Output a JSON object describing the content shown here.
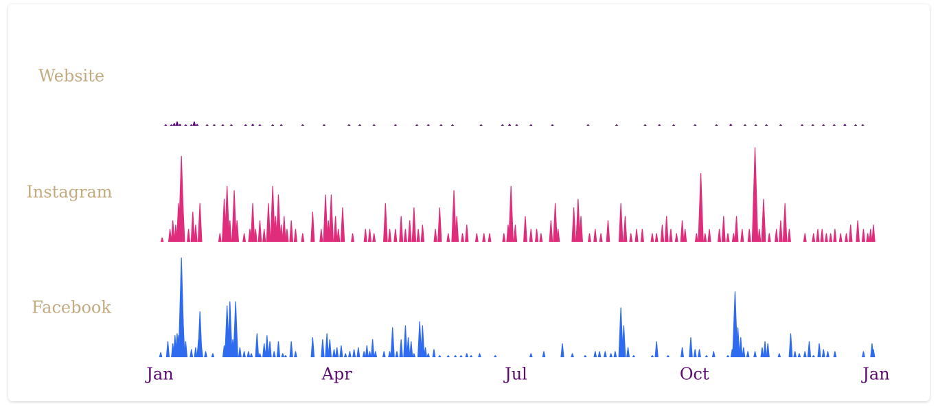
{
  "chart_data": {
    "type": "area",
    "title": "",
    "xlabel": "",
    "ylabel": "",
    "x_range": [
      "2019-01-01",
      "2020-01-01"
    ],
    "x_ticks": [
      "Jan",
      "Apr",
      "Jul",
      "Oct",
      "Jan"
    ],
    "colors": {
      "label": "#c4aa80",
      "tick": "#5c0a72"
    },
    "series": [
      {
        "name": "Website",
        "color": "#5a0078",
        "max": 24,
        "points": [
          [
            0.008,
            0.3
          ],
          [
            0.016,
            0.3
          ],
          [
            0.02,
            0.6
          ],
          [
            0.024,
            1
          ],
          [
            0.028,
            0.4
          ],
          [
            0.036,
            0.3
          ],
          [
            0.044,
            0.3
          ],
          [
            0.048,
            1
          ],
          [
            0.052,
            0.4
          ],
          [
            0.066,
            0.3
          ],
          [
            0.076,
            0.3
          ],
          [
            0.088,
            0.3
          ],
          [
            0.1,
            0.3
          ],
          [
            0.12,
            0.3
          ],
          [
            0.13,
            0.4
          ],
          [
            0.14,
            0.3
          ],
          [
            0.158,
            0.3
          ],
          [
            0.17,
            0.3
          ],
          [
            0.2,
            0.3
          ],
          [
            0.23,
            0.3
          ],
          [
            0.265,
            0.3
          ],
          [
            0.28,
            0.3
          ],
          [
            0.3,
            0.3
          ],
          [
            0.33,
            0.3
          ],
          [
            0.36,
            0.3
          ],
          [
            0.376,
            0.3
          ],
          [
            0.394,
            0.3
          ],
          [
            0.41,
            0.3
          ],
          [
            0.45,
            0.3
          ],
          [
            0.48,
            0.3
          ],
          [
            0.49,
            0.4
          ],
          [
            0.5,
            0.3
          ],
          [
            0.52,
            0.3
          ],
          [
            0.55,
            0.3
          ],
          [
            0.6,
            0.3
          ],
          [
            0.64,
            0.3
          ],
          [
            0.68,
            0.3
          ],
          [
            0.7,
            0.3
          ],
          [
            0.72,
            0.3
          ],
          [
            0.75,
            0.3
          ],
          [
            0.78,
            0.3
          ],
          [
            0.8,
            0.4
          ],
          [
            0.82,
            0.3
          ],
          [
            0.835,
            0.3
          ],
          [
            0.85,
            0.3
          ],
          [
            0.87,
            0.3
          ],
          [
            0.9,
            0.3
          ],
          [
            0.915,
            0.3
          ],
          [
            0.93,
            0.3
          ],
          [
            0.945,
            0.3
          ],
          [
            0.96,
            0.4
          ],
          [
            0.975,
            0.3
          ],
          [
            0.985,
            0.3
          ]
        ]
      },
      {
        "name": "Instagram",
        "color": "#df2d7c",
        "max": 24,
        "points": [
          [
            0.003,
            1
          ],
          [
            0.014,
            3
          ],
          [
            0.018,
            5
          ],
          [
            0.022,
            4
          ],
          [
            0.026,
            9
          ],
          [
            0.03,
            20
          ],
          [
            0.032,
            9
          ],
          [
            0.04,
            3
          ],
          [
            0.046,
            7
          ],
          [
            0.05,
            4
          ],
          [
            0.056,
            9
          ],
          [
            0.084,
            2
          ],
          [
            0.09,
            10
          ],
          [
            0.094,
            13
          ],
          [
            0.098,
            5
          ],
          [
            0.104,
            12
          ],
          [
            0.108,
            5
          ],
          [
            0.118,
            2
          ],
          [
            0.126,
            3
          ],
          [
            0.13,
            9
          ],
          [
            0.134,
            3
          ],
          [
            0.14,
            5
          ],
          [
            0.146,
            3
          ],
          [
            0.152,
            9
          ],
          [
            0.158,
            13
          ],
          [
            0.162,
            6
          ],
          [
            0.166,
            11
          ],
          [
            0.17,
            4
          ],
          [
            0.174,
            6
          ],
          [
            0.178,
            3
          ],
          [
            0.184,
            5
          ],
          [
            0.19,
            3
          ],
          [
            0.2,
            2
          ],
          [
            0.214,
            7
          ],
          [
            0.226,
            3
          ],
          [
            0.232,
            11
          ],
          [
            0.236,
            5
          ],
          [
            0.24,
            11
          ],
          [
            0.246,
            6
          ],
          [
            0.25,
            3
          ],
          [
            0.256,
            8
          ],
          [
            0.27,
            2
          ],
          [
            0.288,
            3
          ],
          [
            0.294,
            3
          ],
          [
            0.3,
            2
          ],
          [
            0.316,
            9
          ],
          [
            0.322,
            3
          ],
          [
            0.33,
            3
          ],
          [
            0.338,
            6
          ],
          [
            0.344,
            3
          ],
          [
            0.35,
            5
          ],
          [
            0.356,
            8
          ],
          [
            0.362,
            3
          ],
          [
            0.368,
            4
          ],
          [
            0.386,
            3
          ],
          [
            0.392,
            8
          ],
          [
            0.404,
            2
          ],
          [
            0.412,
            12
          ],
          [
            0.416,
            6
          ],
          [
            0.424,
            2
          ],
          [
            0.43,
            4
          ],
          [
            0.444,
            2
          ],
          [
            0.454,
            2
          ],
          [
            0.462,
            2
          ],
          [
            0.482,
            2
          ],
          [
            0.488,
            4
          ],
          [
            0.492,
            13
          ],
          [
            0.498,
            4
          ],
          [
            0.512,
            6
          ],
          [
            0.52,
            3
          ],
          [
            0.528,
            3
          ],
          [
            0.534,
            2
          ],
          [
            0.548,
            5
          ],
          [
            0.554,
            9
          ],
          [
            0.558,
            3
          ],
          [
            0.58,
            8
          ],
          [
            0.586,
            10
          ],
          [
            0.59,
            6
          ],
          [
            0.602,
            2
          ],
          [
            0.61,
            3
          ],
          [
            0.618,
            2
          ],
          [
            0.628,
            5
          ],
          [
            0.646,
            9
          ],
          [
            0.652,
            6
          ],
          [
            0.66,
            2
          ],
          [
            0.668,
            3
          ],
          [
            0.676,
            3
          ],
          [
            0.69,
            2
          ],
          [
            0.696,
            2
          ],
          [
            0.704,
            4
          ],
          [
            0.71,
            6
          ],
          [
            0.716,
            3
          ],
          [
            0.724,
            2
          ],
          [
            0.732,
            5
          ],
          [
            0.736,
            3
          ],
          [
            0.752,
            2
          ],
          [
            0.758,
            16
          ],
          [
            0.764,
            2
          ],
          [
            0.77,
            3
          ],
          [
            0.784,
            3
          ],
          [
            0.79,
            6
          ],
          [
            0.796,
            2
          ],
          [
            0.804,
            2
          ],
          [
            0.808,
            6
          ],
          [
            0.816,
            3
          ],
          [
            0.826,
            3
          ],
          [
            0.834,
            22
          ],
          [
            0.84,
            3
          ],
          [
            0.846,
            10
          ],
          [
            0.854,
            2
          ],
          [
            0.864,
            3
          ],
          [
            0.87,
            5
          ],
          [
            0.876,
            9
          ],
          [
            0.882,
            3
          ],
          [
            0.904,
            2
          ],
          [
            0.916,
            2
          ],
          [
            0.922,
            3
          ],
          [
            0.928,
            3
          ],
          [
            0.934,
            2
          ],
          [
            0.94,
            2
          ],
          [
            0.946,
            3
          ],
          [
            0.954,
            2
          ],
          [
            0.962,
            2
          ],
          [
            0.968,
            4
          ],
          [
            0.978,
            5
          ],
          [
            0.986,
            3
          ],
          [
            0.992,
            2
          ],
          [
            0.996,
            3
          ],
          [
            1.0,
            4
          ]
        ]
      },
      {
        "name": "Facebook",
        "color": "#2f6bef",
        "max": 100,
        "points": [
          [
            0.001,
            5
          ],
          [
            0.011,
            16
          ],
          [
            0.018,
            14
          ],
          [
            0.021,
            22
          ],
          [
            0.024,
            24
          ],
          [
            0.026,
            22
          ],
          [
            0.03,
            100
          ],
          [
            0.032,
            42
          ],
          [
            0.036,
            16
          ],
          [
            0.044,
            8
          ],
          [
            0.05,
            10
          ],
          [
            0.054,
            18
          ],
          [
            0.056,
            46
          ],
          [
            0.058,
            12
          ],
          [
            0.064,
            6
          ],
          [
            0.074,
            4
          ],
          [
            0.09,
            12
          ],
          [
            0.094,
            52
          ],
          [
            0.098,
            56
          ],
          [
            0.102,
            18
          ],
          [
            0.106,
            56
          ],
          [
            0.112,
            10
          ],
          [
            0.118,
            6
          ],
          [
            0.124,
            6
          ],
          [
            0.128,
            4
          ],
          [
            0.136,
            24
          ],
          [
            0.14,
            4
          ],
          [
            0.146,
            14
          ],
          [
            0.15,
            22
          ],
          [
            0.154,
            16
          ],
          [
            0.16,
            6
          ],
          [
            0.166,
            16
          ],
          [
            0.172,
            4
          ],
          [
            0.176,
            2
          ],
          [
            0.184,
            16
          ],
          [
            0.19,
            6
          ],
          [
            0.214,
            20
          ],
          [
            0.228,
            18
          ],
          [
            0.234,
            24
          ],
          [
            0.238,
            18
          ],
          [
            0.244,
            8
          ],
          [
            0.248,
            10
          ],
          [
            0.254,
            12
          ],
          [
            0.26,
            4
          ],
          [
            0.266,
            6
          ],
          [
            0.272,
            8
          ],
          [
            0.278,
            10
          ],
          [
            0.286,
            6
          ],
          [
            0.29,
            12
          ],
          [
            0.294,
            6
          ],
          [
            0.298,
            18
          ],
          [
            0.302,
            6
          ],
          [
            0.314,
            6
          ],
          [
            0.322,
            6
          ],
          [
            0.326,
            30
          ],
          [
            0.332,
            6
          ],
          [
            0.338,
            18
          ],
          [
            0.344,
            32
          ],
          [
            0.348,
            20
          ],
          [
            0.352,
            16
          ],
          [
            0.356,
            4
          ],
          [
            0.364,
            36
          ],
          [
            0.368,
            32
          ],
          [
            0.372,
            10
          ],
          [
            0.376,
            4
          ],
          [
            0.384,
            8
          ],
          [
            0.392,
            2
          ],
          [
            0.404,
            2
          ],
          [
            0.414,
            2
          ],
          [
            0.422,
            2
          ],
          [
            0.43,
            4
          ],
          [
            0.436,
            2
          ],
          [
            0.448,
            4
          ],
          [
            0.47,
            2
          ],
          [
            0.52,
            4
          ],
          [
            0.538,
            6
          ],
          [
            0.564,
            14
          ],
          [
            0.578,
            4
          ],
          [
            0.596,
            2
          ],
          [
            0.61,
            6
          ],
          [
            0.616,
            6
          ],
          [
            0.624,
            6
          ],
          [
            0.632,
            4
          ],
          [
            0.638,
            6
          ],
          [
            0.646,
            50
          ],
          [
            0.65,
            32
          ],
          [
            0.656,
            10
          ],
          [
            0.664,
            2
          ],
          [
            0.69,
            2
          ],
          [
            0.696,
            16
          ],
          [
            0.712,
            2
          ],
          [
            0.732,
            10
          ],
          [
            0.744,
            20
          ],
          [
            0.75,
            8
          ],
          [
            0.756,
            8
          ],
          [
            0.766,
            2
          ],
          [
            0.776,
            6
          ],
          [
            0.796,
            2
          ],
          [
            0.802,
            8
          ],
          [
            0.806,
            66
          ],
          [
            0.81,
            30
          ],
          [
            0.814,
            20
          ],
          [
            0.818,
            10
          ],
          [
            0.824,
            6
          ],
          [
            0.834,
            6
          ],
          [
            0.844,
            10
          ],
          [
            0.848,
            16
          ],
          [
            0.852,
            14
          ],
          [
            0.868,
            4
          ],
          [
            0.884,
            24
          ],
          [
            0.89,
            6
          ],
          [
            0.896,
            4
          ],
          [
            0.904,
            6
          ],
          [
            0.91,
            16
          ],
          [
            0.916,
            2
          ],
          [
            0.924,
            14
          ],
          [
            0.93,
            8
          ],
          [
            0.936,
            6
          ],
          [
            0.946,
            6
          ],
          [
            0.986,
            6
          ],
          [
            0.998,
            14
          ],
          [
            1.0,
            8
          ]
        ]
      }
    ]
  }
}
